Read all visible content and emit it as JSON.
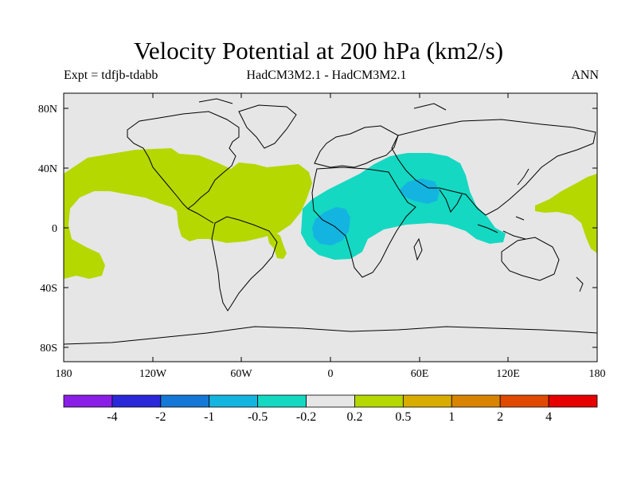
{
  "title": "Velocity Potential at 200 hPa (km2/s)",
  "experiment_label": "Expt = tdfjb-tdabb",
  "model_label": "HadCM3M2.1 - HadCM3M2.1",
  "season_label": "ANN",
  "map": {
    "lat_ticks": [
      "80N",
      "40N",
      "0",
      "40S",
      "80S"
    ],
    "lon_ticks": [
      "180",
      "120W",
      "60W",
      "0",
      "60E",
      "120E",
      "180"
    ]
  },
  "colorbar": {
    "labels": [
      "-4",
      "-2",
      "-1",
      "-0.5",
      "-0.2",
      "0.2",
      "0.5",
      "1",
      "2",
      "4"
    ],
    "colors": [
      "#8a1ee6",
      "#2a28d8",
      "#1678d6",
      "#14b4e0",
      "#14d8c2",
      "#e6e6e6",
      "#b4d800",
      "#d8ac00",
      "#d88400",
      "#e04a00",
      "#e60000"
    ]
  },
  "colors": {
    "background": "#e6e6e6",
    "positive_weak": "#b4d800",
    "negative_weak": "#14d8c2",
    "negative_mid": "#14b4e0"
  }
}
